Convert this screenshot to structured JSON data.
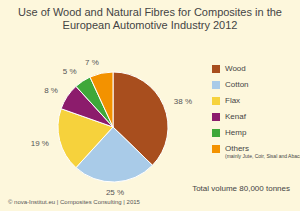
{
  "chart_data": {
    "type": "pie",
    "title": "Use of Wood and Natural Fibres for Composites in the European Automotive Industry 2012",
    "categories": [
      "Wood",
      "Cotton",
      "Flax",
      "Kenaf",
      "Hemp",
      "Others"
    ],
    "values": [
      38,
      25,
      19,
      8,
      5,
      7
    ],
    "value_labels": [
      "38 %",
      "25 %",
      "19 %",
      "8 %",
      "5 %",
      "7 %"
    ],
    "colors": [
      "#a84e1e",
      "#a9cbe8",
      "#f6d23c",
      "#8c1c6c",
      "#3ea83a",
      "#f39200"
    ],
    "data_labels": true,
    "legend": "right",
    "annotations": [
      "(mainly Jute, Coir, Sisal and Abaca)",
      "Total volume 80,000 tonnes",
      "© nova-Institut.eu | Composites Consulting | 2015"
    ]
  }
}
